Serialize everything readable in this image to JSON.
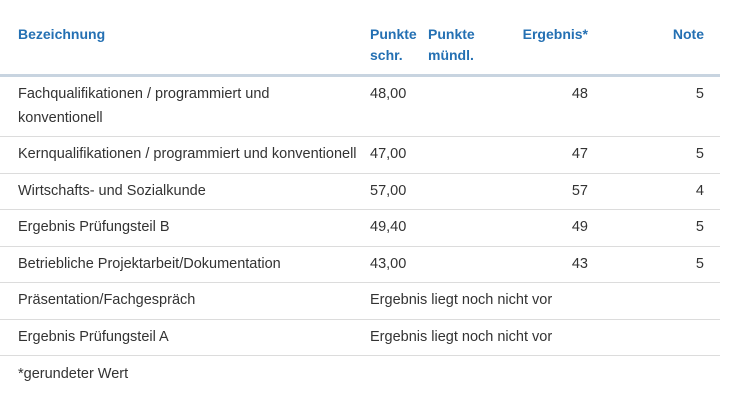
{
  "table": {
    "headers": {
      "name": "Bezeichnung",
      "punkte_schr_line1": "Punkte",
      "punkte_schr_line2": "schr.",
      "punkte_muendl_line1": "Punkte",
      "punkte_muendl_line2": "mündl.",
      "ergebnis": "Ergebnis*",
      "note": "Note"
    },
    "rows": [
      {
        "name": "Fachqualifikationen / programmiert und konventionell",
        "schr": "48,00",
        "muendl": "",
        "ergebnis": "48",
        "note": "5"
      },
      {
        "name": "Kernqualifikationen / programmiert und konventionell",
        "schr": "47,00",
        "muendl": "",
        "ergebnis": "47",
        "note": "5"
      },
      {
        "name": "Wirtschafts- und Sozialkunde",
        "schr": "57,00",
        "muendl": "",
        "ergebnis": "57",
        "note": "4"
      },
      {
        "name": "Ergebnis Prüfungsteil B",
        "schr": "49,40",
        "muendl": "",
        "ergebnis": "49",
        "note": "5"
      },
      {
        "name": "Betriebliche Projektarbeit/Dokumentation",
        "schr": "43,00",
        "muendl": "",
        "ergebnis": "43",
        "note": "5"
      }
    ],
    "pending_rows": [
      {
        "name": "Präsentation/Fachgespräch",
        "status": "Ergebnis liegt noch nicht vor"
      },
      {
        "name": "Ergebnis Prüfungsteil A",
        "status": "Ergebnis liegt noch nicht vor"
      }
    ]
  },
  "footnote": "*gerundeter Wert"
}
